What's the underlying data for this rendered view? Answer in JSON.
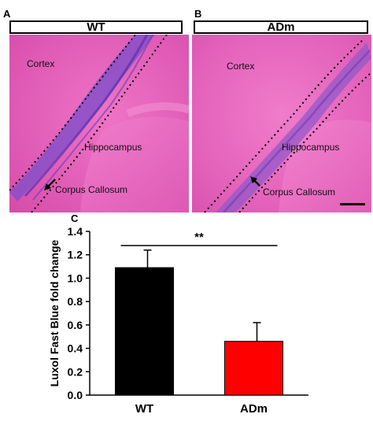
{
  "panels": {
    "a": {
      "letter": "A",
      "group": "WT",
      "labels": {
        "cortex": "Cortex",
        "hippocampus": "Hippocampus",
        "corpus_callosum": "Corpus Callosum"
      }
    },
    "b": {
      "letter": "B",
      "group": "ADm",
      "labels": {
        "cortex": "Cortex",
        "hippocampus": "Hippocampus",
        "corpus_callosum": "Corpus Callosum"
      }
    },
    "c": {
      "letter": "C"
    }
  },
  "colors": {
    "tissue": "#e25ab4",
    "fiber_wt": "#7a4ac8",
    "fiber_adm": "#9150c4",
    "bar_wt": "#000000",
    "bar_adm": "#ff0000"
  },
  "chart_data": {
    "type": "bar",
    "categories": [
      "WT",
      "ADm"
    ],
    "values": [
      1.09,
      0.46
    ],
    "errors": [
      0.15,
      0.16
    ],
    "ylabel": "Luxol Fast Blue fold change",
    "ylim": [
      0,
      1.4
    ],
    "yticks": [
      "0.0",
      "0.2",
      "0.4",
      "0.6",
      "0.8",
      "1.0",
      "1.2",
      "1.4"
    ],
    "significance": "**",
    "bar_colors": [
      "#000000",
      "#ff0000"
    ]
  }
}
